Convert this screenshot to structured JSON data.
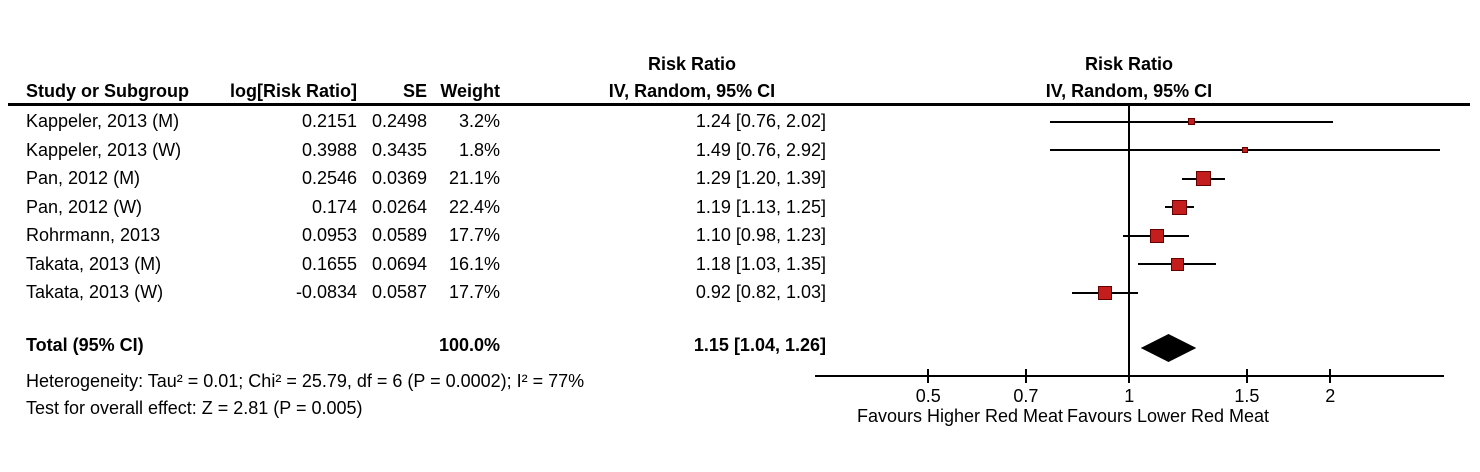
{
  "header": {
    "col_study": "Study or Subgroup",
    "col_log_rr": "log[Risk Ratio]",
    "col_se": "SE",
    "col_weight": "Weight",
    "col_rr_line1": "Risk Ratio",
    "col_rr_line2": "IV, Random, 95% CI",
    "plot_line1": "Risk Ratio",
    "plot_line2": "IV, Random, 95% CI"
  },
  "studies": [
    {
      "name": "Kappeler, 2013 (M)",
      "log_rr": "0.2151",
      "se": "0.2498",
      "weight": "3.2%",
      "rr_ci": "1.24 [0.76, 2.02]",
      "rr": 1.24,
      "ci_low": 0.76,
      "ci_high": 2.02,
      "square_size": 7
    },
    {
      "name": "Kappeler, 2013 (W)",
      "log_rr": "0.3988",
      "se": "0.3435",
      "weight": "1.8%",
      "rr_ci": "1.49 [0.76, 2.92]",
      "rr": 1.49,
      "ci_low": 0.76,
      "ci_high": 2.92,
      "square_size": 6
    },
    {
      "name": "Pan, 2012 (M)",
      "log_rr": "0.2546",
      "se": "0.0369",
      "weight": "21.1%",
      "rr_ci": "1.29 [1.20, 1.39]",
      "rr": 1.29,
      "ci_low": 1.2,
      "ci_high": 1.39,
      "square_size": 15
    },
    {
      "name": "Pan, 2012 (W)",
      "log_rr": "0.174",
      "se": "0.0264",
      "weight": "22.4%",
      "rr_ci": "1.19 [1.13, 1.25]",
      "rr": 1.19,
      "ci_low": 1.13,
      "ci_high": 1.25,
      "square_size": 15
    },
    {
      "name": "Rohrmann, 2013",
      "log_rr": "0.0953",
      "se": "0.0589",
      "weight": "17.7%",
      "rr_ci": "1.10 [0.98, 1.23]",
      "rr": 1.1,
      "ci_low": 0.98,
      "ci_high": 1.23,
      "square_size": 14
    },
    {
      "name": "Takata, 2013 (M)",
      "log_rr": "0.1655",
      "se": "0.0694",
      "weight": "16.1%",
      "rr_ci": "1.18 [1.03, 1.35]",
      "rr": 1.18,
      "ci_low": 1.03,
      "ci_high": 1.35,
      "square_size": 13
    },
    {
      "name": "Takata, 2013 (W)",
      "log_rr": "-0.0834",
      "se": "0.0587",
      "weight": "17.7%",
      "rr_ci": "0.92 [0.82, 1.03]",
      "rr": 0.92,
      "ci_low": 0.82,
      "ci_high": 1.03,
      "square_size": 14
    }
  ],
  "total": {
    "label": "Total (95% CI)",
    "weight": "100.0%",
    "rr_ci": "1.15 [1.04, 1.26]",
    "rr": 1.15,
    "ci_low": 1.04,
    "ci_high": 1.26
  },
  "footnotes": {
    "heterogeneity": "Heterogeneity: Tau² = 0.01; Chi² = 25.79, df = 6 (P = 0.0002); I² = 77%",
    "overall_effect": "Test for overall effect: Z = 2.81 (P = 0.005)"
  },
  "axis": {
    "ticks": [
      0.5,
      0.7,
      1,
      1.5,
      2
    ],
    "favours_left": "Favours Higher Red Meat",
    "favours_right": "Favours Lower Red Meat"
  },
  "colors": {
    "square_fill": "#c41d1d",
    "square_border": "#650000",
    "diamond": "#000000",
    "line": "#000000"
  },
  "chart_data": {
    "type": "scatter",
    "variant": "forest-plot",
    "title": "Risk Ratio — IV, Random, 95% CI",
    "x_scale": "log",
    "x_ticks": [
      0.5,
      0.7,
      1,
      1.5,
      2
    ],
    "x_range": [
      0.34,
      2.96
    ],
    "no_effect_line": 1,
    "axis_labels": {
      "left": "Favours Higher Red Meat",
      "right": "Favours Lower Red Meat"
    },
    "series": [
      {
        "name": "Kappeler, 2013 (M)",
        "log_rr": 0.2151,
        "se": 0.2498,
        "weight_pct": 3.2,
        "rr": 1.24,
        "ci": [
          0.76,
          2.02
        ]
      },
      {
        "name": "Kappeler, 2013 (W)",
        "log_rr": 0.3988,
        "se": 0.3435,
        "weight_pct": 1.8,
        "rr": 1.49,
        "ci": [
          0.76,
          2.92
        ]
      },
      {
        "name": "Pan, 2012 (M)",
        "log_rr": 0.2546,
        "se": 0.0369,
        "weight_pct": 21.1,
        "rr": 1.29,
        "ci": [
          1.2,
          1.39
        ]
      },
      {
        "name": "Pan, 2012 (W)",
        "log_rr": 0.174,
        "se": 0.0264,
        "weight_pct": 22.4,
        "rr": 1.19,
        "ci": [
          1.13,
          1.25
        ]
      },
      {
        "name": "Rohrmann, 2013",
        "log_rr": 0.0953,
        "se": 0.0589,
        "weight_pct": 17.7,
        "rr": 1.1,
        "ci": [
          0.98,
          1.23
        ]
      },
      {
        "name": "Takata, 2013 (M)",
        "log_rr": 0.1655,
        "se": 0.0694,
        "weight_pct": 16.1,
        "rr": 1.18,
        "ci": [
          1.03,
          1.35
        ]
      },
      {
        "name": "Takata, 2013 (W)",
        "log_rr": -0.0834,
        "se": 0.0587,
        "weight_pct": 17.7,
        "rr": 0.92,
        "ci": [
          0.82,
          1.03
        ]
      }
    ],
    "total": {
      "name": "Total (95% CI)",
      "weight_pct": 100.0,
      "rr": 1.15,
      "ci": [
        1.04,
        1.26
      ]
    },
    "stats": {
      "tau2": 0.01,
      "chi2": 25.79,
      "df": 6,
      "p_heterogeneity": 0.0002,
      "i2_pct": 77,
      "z": 2.81,
      "p_overall": 0.005
    }
  }
}
